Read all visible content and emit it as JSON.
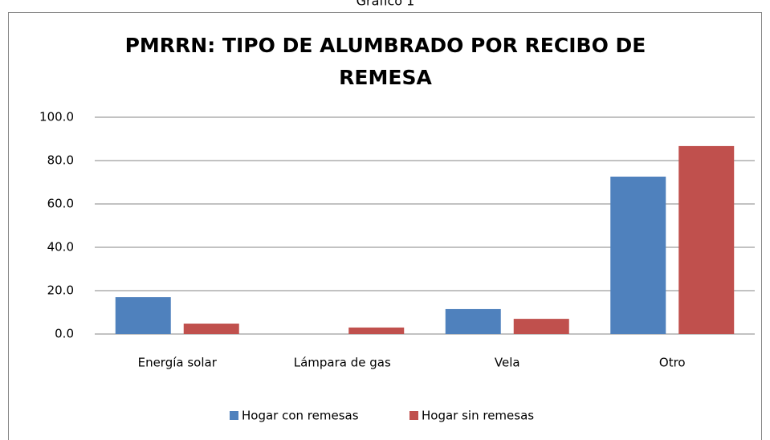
{
  "caption": "Gráfico 1",
  "chart_data": {
    "type": "bar",
    "title": [
      "PMRRN: TIPO DE ALUMBRADO POR RECIBO DE",
      "REMESA"
    ],
    "categories": [
      "Energía solar",
      "Lámpara de gas",
      "Vela",
      "Otro"
    ],
    "series": [
      {
        "name": "Hogar con remesas",
        "color": "#4f81bd",
        "values": [
          17.0,
          0,
          11.5,
          72.6
        ]
      },
      {
        "name": "Hogar sin remesas",
        "color": "#c0504d",
        "values": [
          4.8,
          3.0,
          7.0,
          86.7
        ]
      }
    ],
    "ylim": [
      0,
      100
    ],
    "yticks": [
      {
        "value": 0,
        "label": "0.0"
      },
      {
        "value": 20,
        "label": "20.0"
      },
      {
        "value": 40,
        "label": "40.0"
      },
      {
        "value": 60,
        "label": "60.0"
      },
      {
        "value": 80,
        "label": "80.0"
      },
      {
        "value": 100,
        "label": "100.0"
      }
    ],
    "grid": true,
    "legend": "bottom"
  }
}
